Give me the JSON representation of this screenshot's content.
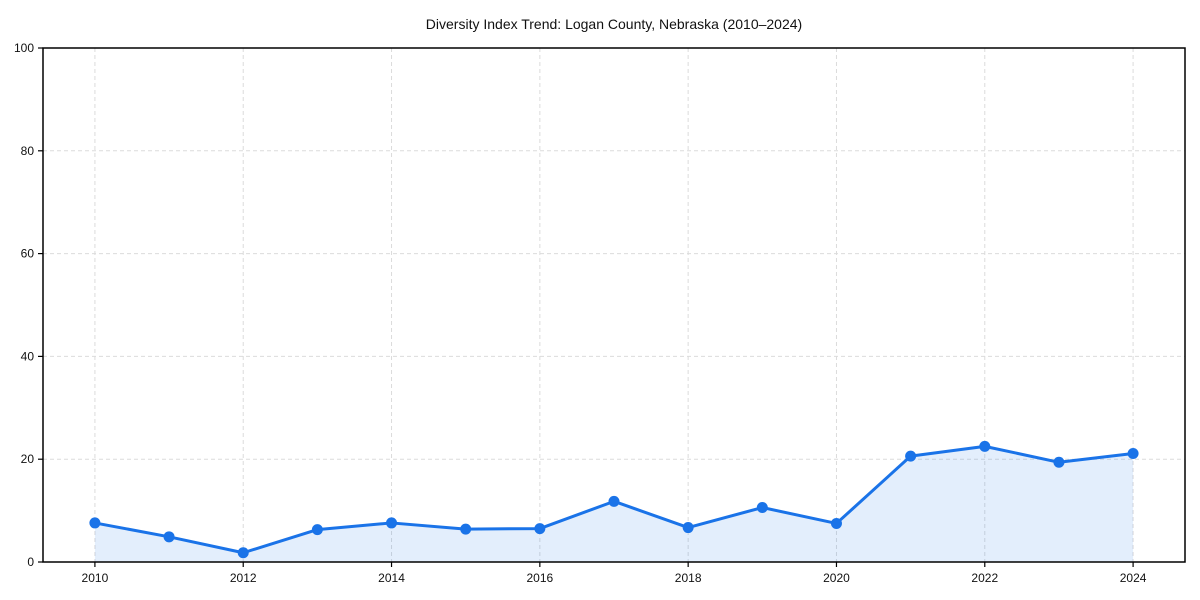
{
  "chart_data": {
    "type": "area",
    "title": "Diversity Index Trend: Logan County, Nebraska (2010–2024)",
    "xlabel": "",
    "ylabel": "",
    "x": [
      2010,
      2011,
      2012,
      2013,
      2014,
      2015,
      2016,
      2017,
      2018,
      2019,
      2020,
      2021,
      2022,
      2023,
      2024
    ],
    "series": [
      {
        "name": "Diversity Index",
        "values": [
          7.6,
          4.9,
          1.8,
          6.3,
          7.6,
          6.4,
          6.5,
          11.8,
          6.7,
          10.6,
          7.5,
          20.6,
          22.5,
          19.4,
          21.1
        ]
      }
    ],
    "xlim": [
      2009.3,
      2024.7
    ],
    "ylim": [
      0,
      100
    ],
    "xticks": [
      2010,
      2012,
      2014,
      2016,
      2018,
      2020,
      2022,
      2024
    ],
    "yticks": [
      0,
      20,
      40,
      60,
      80,
      100
    ],
    "grid": true,
    "grid_style": "dashed",
    "legend": false,
    "colors": {
      "line": "#1a73e8",
      "marker": "#1a73e8",
      "fill": "#1a73e8",
      "fill_opacity": 0.12,
      "grid": "#dbdbdb",
      "axis": "#000000",
      "text": "#111111",
      "background": "#ffffff"
    }
  }
}
